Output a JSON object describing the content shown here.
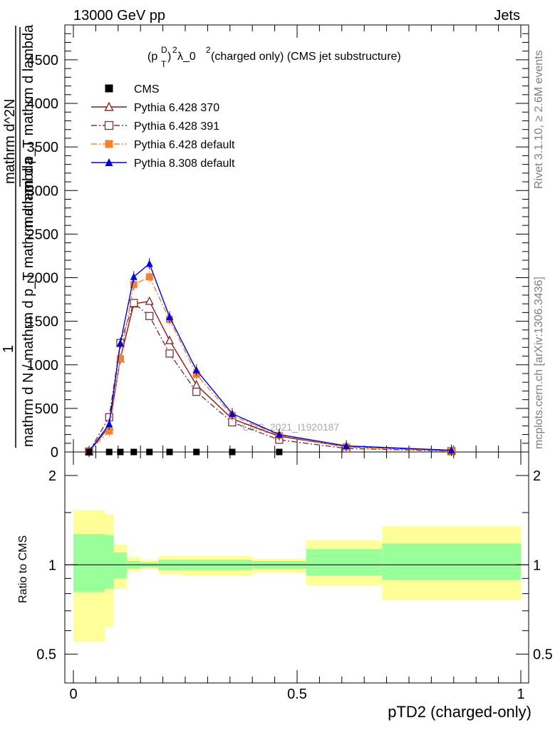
{
  "header": {
    "left": "13000 GeV pp",
    "right": "Jets"
  },
  "side_labels": {
    "rivet": "Rivet 3.1.10, ≥ 2.6M events",
    "mcplots": "mcplots.cern.ch [arXiv:1306.3436]"
  },
  "main_plot": {
    "title": "(p_T^D)^2 λ_0^2 (charged only) (CMS jet substructure)",
    "title_parts": {
      "p": "(p",
      "sup1": "D",
      "sub1": "T",
      "close": ")",
      "sup2": "2",
      "lambda": " λ_0",
      "sup3": "2",
      "rest": " (charged only) (CMS jet substructure)"
    },
    "ylabel_parts": {
      "one": "1",
      "denominator": "mathrm d N / mathrm d p_T mathrm d lambda",
      "numerator": "mathrm d^2N",
      "over_line": "mathrm d p_T mathrm d lambda",
      "t_sub": "T"
    },
    "watermark": "CMS_2021_I1920187",
    "ytick_labels": [
      "0",
      "500",
      "1000",
      "1500",
      "2000",
      "2500",
      "3000",
      "3500",
      "4000",
      "4500"
    ]
  },
  "ratio_plot": {
    "ylabel": "Ratio to CMS",
    "ytick_labels_left": [
      "0.5",
      "1",
      "2"
    ],
    "ytick_labels_right": [
      "0.5",
      "1",
      "2"
    ]
  },
  "x_axis": {
    "label": "pTD2 (charged-only)",
    "tick_labels": [
      "0",
      "0.5",
      "1"
    ]
  },
  "legend": [
    {
      "name": "CMS",
      "color": "#000000",
      "marker": "square-filled",
      "line": "none"
    },
    {
      "name": "Pythia 6.428 370",
      "color": "#8b1a1a",
      "marker": "triangle-open",
      "line": "solid"
    },
    {
      "name": "Pythia 6.428 391",
      "color": "#6b3a4a",
      "marker": "square-open",
      "line": "dashdot"
    },
    {
      "name": "Pythia 6.428 default",
      "color": "#f58231",
      "marker": "square-filled",
      "line": "dashdot"
    },
    {
      "name": "Pythia 8.308 default",
      "color": "#0000dd",
      "marker": "triangle-filled",
      "line": "solid"
    }
  ],
  "chart_data": [
    {
      "type": "line",
      "xlim": [
        0,
        1
      ],
      "ylim": [
        0,
        4900
      ],
      "x": [
        0.035,
        0.08,
        0.105,
        0.135,
        0.17,
        0.215,
        0.275,
        0.355,
        0.46,
        0.61,
        0.845
      ],
      "series": [
        {
          "name": "CMS",
          "values": [
            0,
            0,
            0,
            0,
            0,
            0,
            0,
            0,
            0,
            null,
            null
          ]
        },
        {
          "name": "Pythia 6.428 370",
          "values": [
            5,
            290,
            1070,
            1700,
            1730,
            1280,
            770,
            380,
            180,
            60,
            15
          ]
        },
        {
          "name": "Pythia 6.428 391",
          "values": [
            5,
            400,
            1250,
            1710,
            1560,
            1130,
            690,
            340,
            140,
            40,
            10
          ]
        },
        {
          "name": "Pythia 6.428 default",
          "values": [
            5,
            240,
            1070,
            1920,
            2010,
            1520,
            890,
            420,
            190,
            60,
            15
          ]
        },
        {
          "name": "Pythia 8.308 default",
          "values": [
            5,
            320,
            1250,
            2010,
            2160,
            1550,
            940,
            440,
            200,
            70,
            20
          ]
        }
      ]
    },
    {
      "type": "area",
      "xlim": [
        0,
        1
      ],
      "ylim": [
        0.4,
        2.4
      ],
      "log_y": true,
      "reference_line": 1,
      "bins": [
        {
          "x": [
            0.0,
            0.07
          ],
          "yellow": [
            0.55,
            1.53
          ],
          "green": [
            0.81,
            1.27
          ]
        },
        {
          "x": [
            0.07,
            0.09
          ],
          "yellow": [
            0.62,
            1.48
          ],
          "green": [
            0.83,
            1.26
          ]
        },
        {
          "x": [
            0.09,
            0.12
          ],
          "yellow": [
            0.83,
            1.17
          ],
          "green": [
            0.9,
            1.1
          ]
        },
        {
          "x": [
            0.12,
            0.15
          ],
          "yellow": [
            0.95,
            1.06
          ],
          "green": [
            0.97,
            1.03
          ]
        },
        {
          "x": [
            0.15,
            0.19
          ],
          "yellow": [
            0.97,
            1.04
          ],
          "green": [
            0.98,
            1.02
          ]
        },
        {
          "x": [
            0.19,
            0.24
          ],
          "yellow": [
            0.93,
            1.07
          ],
          "green": [
            0.96,
            1.04
          ]
        },
        {
          "x": [
            0.24,
            0.4
          ],
          "yellow": [
            0.92,
            1.07
          ],
          "green": [
            0.96,
            1.04
          ]
        },
        {
          "x": [
            0.4,
            0.52
          ],
          "yellow": [
            0.94,
            1.05
          ],
          "green": [
            0.97,
            1.03
          ]
        },
        {
          "x": [
            0.52,
            0.69
          ],
          "yellow": [
            0.85,
            1.21
          ],
          "green": [
            0.92,
            1.13
          ]
        },
        {
          "x": [
            0.69,
            1.0
          ],
          "yellow": [
            0.76,
            1.35
          ],
          "green": [
            0.89,
            1.18
          ]
        }
      ]
    }
  ]
}
